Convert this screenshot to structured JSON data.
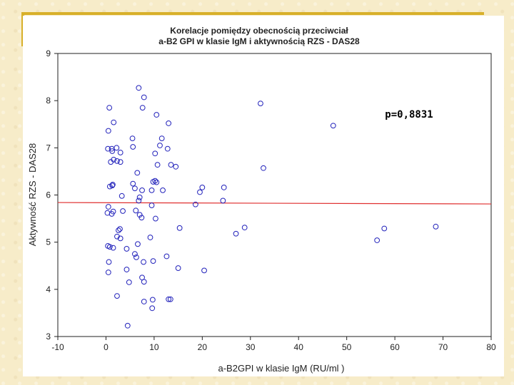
{
  "chart_data": {
    "type": "scatter",
    "title": [
      "Korelacje pomiędzy obecnością przeciwciał",
      "a-B2 GPI w klasie IgM i aktywnością RZS - DAS28"
    ],
    "xlabel": "a-B2GPI w klasie IgM (RU/ml )",
    "ylabel": "Aktywność RZS - DAS28",
    "xlim": [
      -10,
      80
    ],
    "ylim": [
      3,
      9
    ],
    "xticks": [
      -10,
      0,
      10,
      20,
      30,
      40,
      50,
      60,
      70,
      80
    ],
    "yticks": [
      3,
      4,
      5,
      6,
      7,
      8,
      9
    ],
    "grid": false,
    "annotation": "p=0,8831",
    "regression_line": {
      "x": [
        -10,
        80
      ],
      "y": [
        5.84,
        5.81
      ],
      "color": "#e03030"
    },
    "marker_color": "#2222bb",
    "points": [
      {
        "x": 0.5,
        "y": 5.75
      },
      {
        "x": 0.3,
        "y": 5.62
      },
      {
        "x": 1.2,
        "y": 5.6
      },
      {
        "x": 1.5,
        "y": 5.65
      },
      {
        "x": 0.4,
        "y": 4.92
      },
      {
        "x": 0.8,
        "y": 4.9
      },
      {
        "x": 1.5,
        "y": 4.88
      },
      {
        "x": 0.6,
        "y": 4.58
      },
      {
        "x": 0.5,
        "y": 4.36
      },
      {
        "x": 0.8,
        "y": 6.18
      },
      {
        "x": 1.3,
        "y": 6.2
      },
      {
        "x": 1.4,
        "y": 6.22
      },
      {
        "x": 0.4,
        "y": 6.98
      },
      {
        "x": 0.5,
        "y": 7.36
      },
      {
        "x": 0.7,
        "y": 7.85
      },
      {
        "x": 1.6,
        "y": 7.54
      },
      {
        "x": 1.2,
        "y": 6.98
      },
      {
        "x": 1.3,
        "y": 6.93
      },
      {
        "x": 1.0,
        "y": 6.7
      },
      {
        "x": 1.6,
        "y": 6.75
      },
      {
        "x": 2.2,
        "y": 7.0
      },
      {
        "x": 2.3,
        "y": 6.72
      },
      {
        "x": 3.0,
        "y": 6.7
      },
      {
        "x": 3.0,
        "y": 6.9
      },
      {
        "x": 3.3,
        "y": 5.98
      },
      {
        "x": 3.5,
        "y": 5.66
      },
      {
        "x": 2.6,
        "y": 5.25
      },
      {
        "x": 2.9,
        "y": 5.28
      },
      {
        "x": 2.3,
        "y": 5.12
      },
      {
        "x": 3.0,
        "y": 5.08
      },
      {
        "x": 2.3,
        "y": 3.86
      },
      {
        "x": 4.5,
        "y": 3.23
      },
      {
        "x": 4.3,
        "y": 4.86
      },
      {
        "x": 4.3,
        "y": 4.42
      },
      {
        "x": 4.8,
        "y": 4.15
      },
      {
        "x": 5.5,
        "y": 7.2
      },
      {
        "x": 5.6,
        "y": 7.02
      },
      {
        "x": 6.5,
        "y": 6.47
      },
      {
        "x": 5.6,
        "y": 6.24
      },
      {
        "x": 6.0,
        "y": 6.14
      },
      {
        "x": 6.2,
        "y": 5.67
      },
      {
        "x": 7.0,
        "y": 5.58
      },
      {
        "x": 7.4,
        "y": 5.52
      },
      {
        "x": 6.6,
        "y": 4.96
      },
      {
        "x": 6.0,
        "y": 4.75
      },
      {
        "x": 6.3,
        "y": 4.68
      },
      {
        "x": 7.5,
        "y": 4.25
      },
      {
        "x": 7.9,
        "y": 4.16
      },
      {
        "x": 7.9,
        "y": 3.74
      },
      {
        "x": 6.8,
        "y": 8.27
      },
      {
        "x": 7.9,
        "y": 8.07
      },
      {
        "x": 7.6,
        "y": 7.85
      },
      {
        "x": 7.5,
        "y": 6.1
      },
      {
        "x": 7.0,
        "y": 5.95
      },
      {
        "x": 6.8,
        "y": 5.88
      },
      {
        "x": 7.8,
        "y": 4.58
      },
      {
        "x": 9.5,
        "y": 6.1
      },
      {
        "x": 9.8,
        "y": 6.28
      },
      {
        "x": 10.2,
        "y": 6.3
      },
      {
        "x": 10.5,
        "y": 6.27
      },
      {
        "x": 9.5,
        "y": 5.78
      },
      {
        "x": 10.3,
        "y": 5.5
      },
      {
        "x": 9.2,
        "y": 5.1
      },
      {
        "x": 9.8,
        "y": 4.6
      },
      {
        "x": 9.7,
        "y": 3.78
      },
      {
        "x": 9.6,
        "y": 3.6
      },
      {
        "x": 10.2,
        "y": 6.88
      },
      {
        "x": 10.5,
        "y": 7.7
      },
      {
        "x": 10.7,
        "y": 6.64
      },
      {
        "x": 11.2,
        "y": 7.05
      },
      {
        "x": 11.6,
        "y": 7.2
      },
      {
        "x": 11.8,
        "y": 6.1
      },
      {
        "x": 12.8,
        "y": 6.98
      },
      {
        "x": 13.0,
        "y": 7.52
      },
      {
        "x": 13.5,
        "y": 6.64
      },
      {
        "x": 14.5,
        "y": 6.6
      },
      {
        "x": 12.6,
        "y": 4.7
      },
      {
        "x": 13.0,
        "y": 3.79
      },
      {
        "x": 13.4,
        "y": 3.79
      },
      {
        "x": 15.0,
        "y": 4.45
      },
      {
        "x": 15.3,
        "y": 5.3
      },
      {
        "x": 18.6,
        "y": 5.8
      },
      {
        "x": 19.5,
        "y": 6.06
      },
      {
        "x": 20.0,
        "y": 6.16
      },
      {
        "x": 20.4,
        "y": 4.4
      },
      {
        "x": 24.5,
        "y": 6.16
      },
      {
        "x": 24.3,
        "y": 5.88
      },
      {
        "x": 27.0,
        "y": 5.18
      },
      {
        "x": 28.8,
        "y": 5.31
      },
      {
        "x": 32.1,
        "y": 7.94
      },
      {
        "x": 32.7,
        "y": 6.57
      },
      {
        "x": 47.2,
        "y": 7.47
      },
      {
        "x": 56.3,
        "y": 5.04
      },
      {
        "x": 57.8,
        "y": 5.29
      },
      {
        "x": 68.5,
        "y": 5.33
      }
    ]
  }
}
